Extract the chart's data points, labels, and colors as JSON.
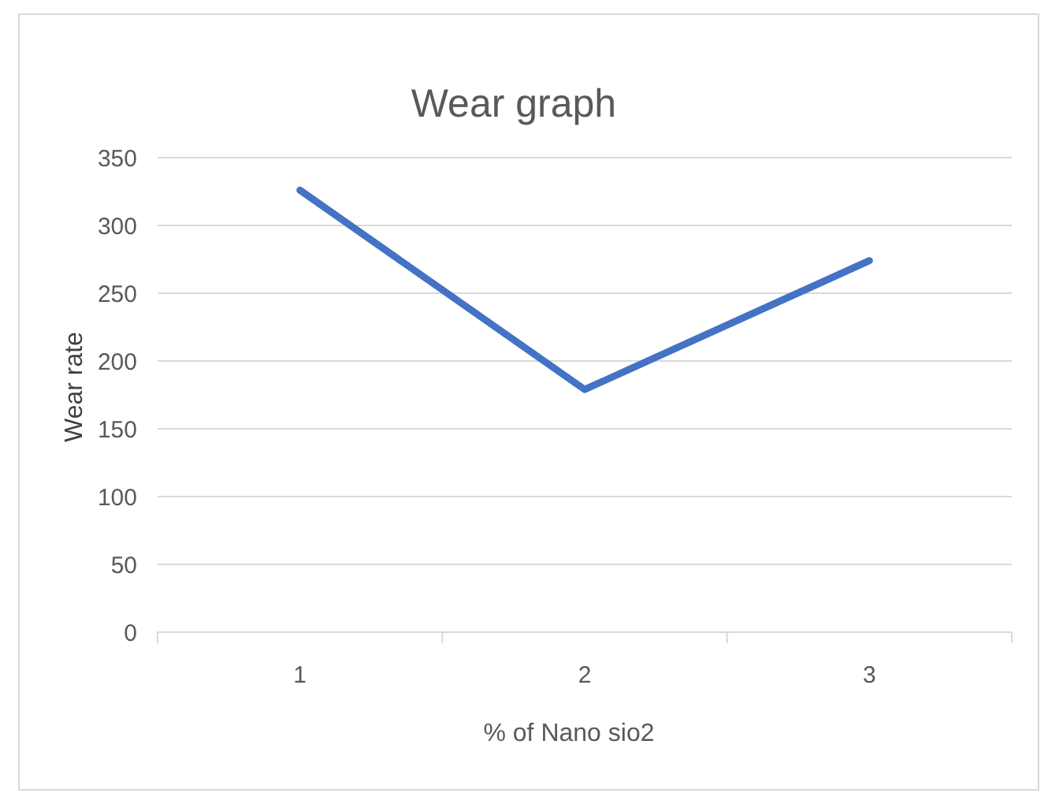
{
  "chart_data": {
    "type": "line",
    "title": "Wear graph",
    "xlabel": "% of Nano sio2",
    "ylabel": "Wear rate",
    "categories": [
      "1",
      "2",
      "3"
    ],
    "series": [
      {
        "color": "#4472c4",
        "values": [
          326,
          179,
          274
        ]
      }
    ],
    "ylim": [
      0,
      350
    ],
    "yticks": [
      0,
      50,
      100,
      150,
      200,
      250,
      300,
      350
    ],
    "grid": "y",
    "marker": "none",
    "line_style": "solid"
  }
}
